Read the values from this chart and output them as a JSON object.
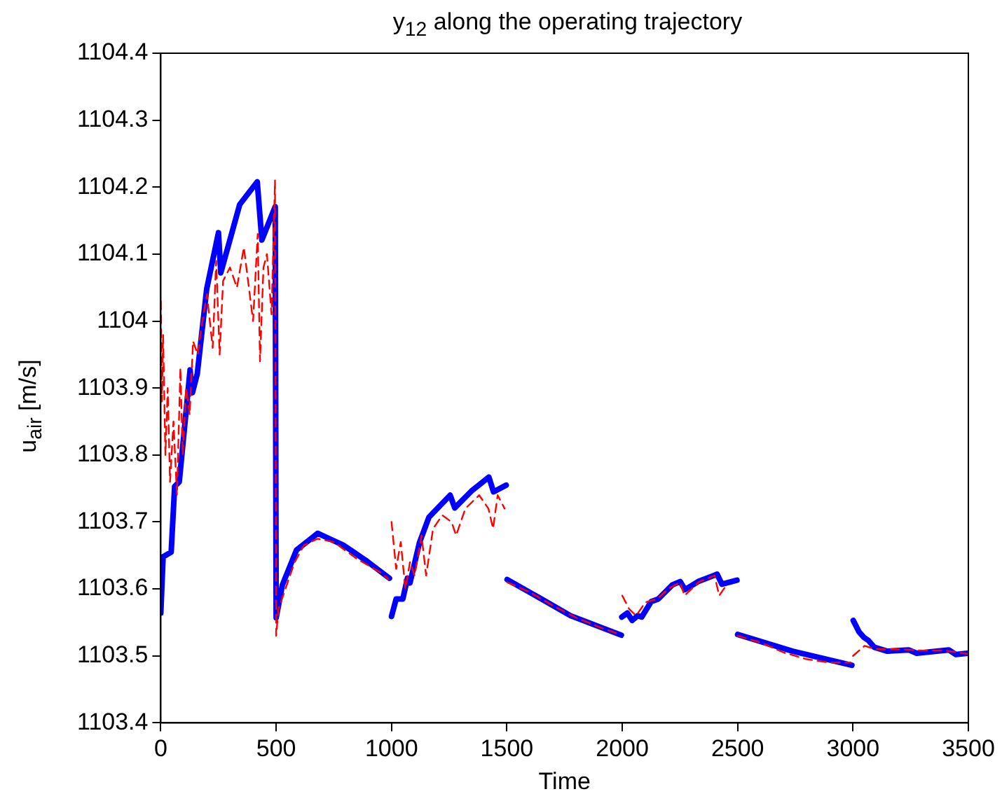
{
  "chart_data": {
    "type": "line",
    "title": "y$_{12}$ along the operating trajectory",
    "xlabel": "Time",
    "ylabel": "u$_{air}$ [m/s]",
    "xlim": [
      0,
      3500
    ],
    "xticks": [
      0,
      500,
      1000,
      1500,
      2000,
      2500,
      3000,
      3500
    ],
    "ylim": [
      1103.4,
      1104.4
    ],
    "yticks": [
      1103.4,
      1103.5,
      1103.6,
      1103.7,
      1103.8,
      1103.9,
      1104,
      1104.1,
      1104.2,
      1104.3,
      1104.4
    ],
    "grid": false,
    "series": [
      {
        "color": "#ff0000",
        "line_style": "dashed",
        "x": [
          0,
          5,
          10,
          20,
          30,
          40,
          55,
          70,
          85,
          95,
          110,
          125,
          140,
          160,
          180,
          200,
          225,
          240,
          255,
          270,
          300,
          330,
          360,
          400,
          420,
          430,
          445,
          460,
          480,
          495,
          500,
          510,
          540,
          580,
          620,
          680,
          750,
          850,
          950,
          985,
          995,
          1000,
          1020,
          1040,
          1060,
          1080,
          1100,
          1130,
          1150,
          1180,
          1220,
          1260,
          1280,
          1320,
          1380,
          1420,
          1440,
          1460,
          1490,
          1499,
          1501,
          1600,
          1700,
          1800,
          1900,
          1990,
          1997,
          2000,
          2030,
          2060,
          2100,
          2150,
          2200,
          2250,
          2270,
          2330,
          2400,
          2420,
          2450,
          2498,
          2500,
          2600,
          2700,
          2800,
          2900,
          2990,
          2997,
          3000,
          3050,
          3100,
          3200,
          3300,
          3400,
          3497
        ],
        "values": [
          1104.03,
          1103.88,
          1103.98,
          1103.8,
          1103.9,
          1103.76,
          1103.85,
          1103.74,
          1103.93,
          1103.8,
          1103.9,
          1103.86,
          1103.97,
          1103.95,
          1104,
          1104.04,
          1103.96,
          1104.09,
          1103.95,
          1104.06,
          1104.08,
          1104.05,
          1104.11,
          1104,
          1104.13,
          1103.94,
          1104.08,
          1104.1,
          1104.01,
          1104.21,
          1103.53,
          1103.57,
          1103.6,
          1103.64,
          1103.665,
          1103.675,
          1103.67,
          1103.645,
          1103.625,
          1103.615,
          null,
          1103.7,
          1103.63,
          1103.67,
          1103.6,
          1103.64,
          1103.62,
          1103.68,
          1103.62,
          1103.69,
          1103.71,
          1103.7,
          1103.68,
          1103.72,
          1103.74,
          1103.72,
          1103.69,
          1103.74,
          1103.72,
          null,
          1103.61,
          1103.595,
          1103.575,
          1103.557,
          1103.543,
          1103.532,
          null,
          1103.59,
          1103.57,
          1103.56,
          1103.58,
          1103.585,
          1103.6,
          1103.61,
          1103.59,
          1103.61,
          1103.62,
          1103.59,
          1103.605,
          null,
          1103.53,
          1103.52,
          1103.505,
          1103.495,
          1103.49,
          1103.49,
          null,
          1103.5,
          1103.515,
          1103.51,
          1103.51,
          1103.508,
          1103.508,
          1103.503
        ]
      },
      {
        "color": "#0000ff",
        "line_style": "solid",
        "x": [
          0,
          10,
          45,
          60,
          80,
          86,
          127,
          137,
          158,
          199,
          250,
          260,
          342,
          418,
          438,
          496,
          500,
          527,
          588,
          680,
          793,
          895,
          991,
          995,
          1000,
          1020,
          1049,
          1069,
          1080,
          1121,
          1162,
          1254,
          1274,
          1346,
          1422,
          1442,
          1497,
          1499,
          1501,
          1650,
          1776,
          1996,
          1997,
          1998,
          2022,
          2043,
          2067,
          2084,
          2125,
          2156,
          2217,
          2251,
          2272,
          2329,
          2411,
          2432,
          2497,
          2498,
          2500,
          2739,
          2995,
          2998,
          3001,
          3026,
          3046,
          3067,
          3092,
          3149,
          3241,
          3276,
          3415,
          3446,
          3497
        ],
        "values": [
          1103.564,
          1103.648,
          1103.655,
          1103.753,
          1103.76,
          1103.781,
          1103.927,
          1103.893,
          1103.921,
          1104.048,
          1104.132,
          1104.072,
          1104.174,
          1104.208,
          1104.121,
          1104.171,
          1103.557,
          1103.606,
          1103.658,
          1103.683,
          1103.665,
          1103.641,
          1103.616,
          null,
          1103.559,
          1103.585,
          1103.585,
          1103.616,
          1103.609,
          1103.669,
          1103.707,
          1103.74,
          1103.721,
          1103.746,
          1103.767,
          1103.745,
          1103.755,
          null,
          1103.614,
          1103.585,
          1103.56,
          1103.531,
          null,
          1103.558,
          1103.564,
          1103.553,
          1103.56,
          1103.558,
          1103.581,
          1103.585,
          1103.606,
          1103.611,
          1103.599,
          1103.611,
          1103.622,
          1103.607,
          1103.613,
          null,
          1103.532,
          1103.507,
          1103.486,
          null,
          1103.553,
          1103.536,
          1103.528,
          1103.523,
          1103.513,
          1103.507,
          1103.509,
          1103.504,
          1103.509,
          1103.502,
          1103.504
        ]
      }
    ]
  }
}
